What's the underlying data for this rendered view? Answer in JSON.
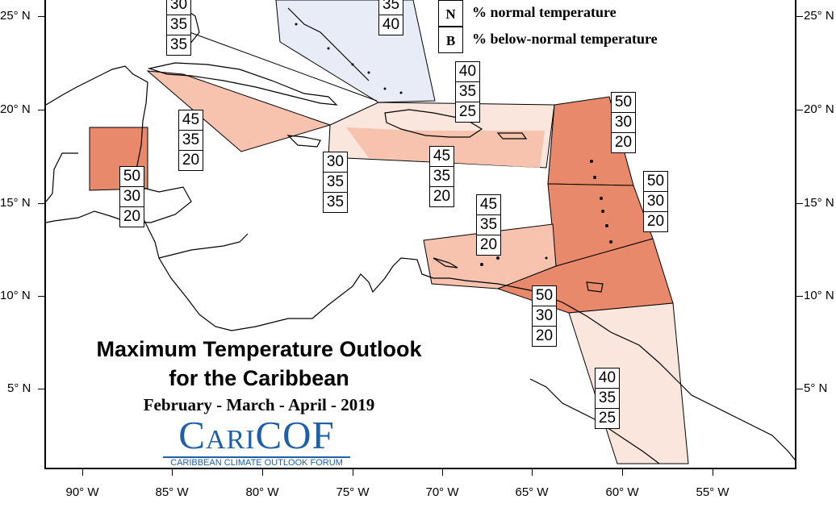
{
  "title_line1": "Maximum Temperature Outlook",
  "title_line2": "for the Caribbean",
  "period": "February - March - April - 2019",
  "logo": {
    "name": "CariCOF",
    "tagline": "CARIBBEAN CLIMATE OUTLOOK FORUM"
  },
  "legend": [
    {
      "key": "N",
      "text": "% normal temperature"
    },
    {
      "key": "B",
      "text": "% below-normal temperature"
    }
  ],
  "lat_labels": [
    "25° N",
    "20° N",
    "15° N",
    "10° N",
    "5° N"
  ],
  "lon_labels": [
    "90° W",
    "85° W",
    "80° W",
    "75° W",
    "70° W",
    "65° W",
    "60° W",
    "55° W"
  ],
  "colors": {
    "above_50": "#e8896c",
    "above_45": "#f7c3ae",
    "above_40": "#fbe6dd",
    "bahamas": "#e8ecf6",
    "coast": "#000000"
  },
  "probability_boxes": [
    {
      "region": "cuba-east",
      "values": [
        "30",
        "35",
        "35"
      ]
    },
    {
      "region": "bahamas",
      "values": [
        "35",
        "40"
      ]
    },
    {
      "region": "cayman-jamaica-west",
      "values": [
        "45",
        "35",
        "20"
      ]
    },
    {
      "region": "jamaica",
      "values": [
        "30",
        "35",
        "35"
      ]
    },
    {
      "region": "hispaniola-puerto-rico",
      "values": [
        "45",
        "35",
        "20"
      ]
    },
    {
      "region": "turks-caicos",
      "values": [
        "40",
        "35",
        "25"
      ]
    },
    {
      "region": "belize",
      "values": [
        "50",
        "30",
        "20"
      ]
    },
    {
      "region": "leeward-islands",
      "values": [
        "50",
        "30",
        "20"
      ]
    },
    {
      "region": "windward-islands",
      "values": [
        "50",
        "30",
        "20"
      ]
    },
    {
      "region": "abc-islands",
      "values": [
        "45",
        "35",
        "20"
      ]
    },
    {
      "region": "trinidad",
      "values": [
        "50",
        "30",
        "20"
      ]
    },
    {
      "region": "guianas",
      "values": [
        "40",
        "35",
        "25"
      ]
    }
  ]
}
